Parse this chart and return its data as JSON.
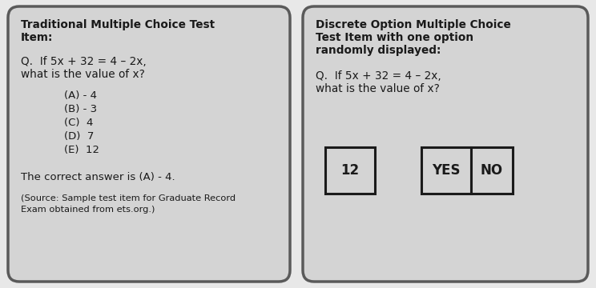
{
  "bg_color": "#e8e8e8",
  "panel_color": "#d4d4d4",
  "panel_border_color": "#5a5a5a",
  "text_color": "#1a1a1a",
  "left_title_line1": "Traditional Multiple Choice Test",
  "left_title_line2": "Item:",
  "left_question_line1": "Q.  If 5x + 32 = 4 – 2x,",
  "left_question_line2": "what is the value of x?",
  "left_choices": [
    "(A) - 4",
    "(B) - 3",
    "(C)  4",
    "(D)  7",
    "(E)  12"
  ],
  "left_answer": "The correct answer is (A) - 4.",
  "left_source_line1": "(Source: Sample test item for Graduate Record",
  "left_source_line2": "Exam obtained from ets.org.)",
  "right_title_line1": "Discrete Option Multiple Choice",
  "right_title_line2": "Test Item with one option",
  "right_title_line3": "randomly displayed:",
  "right_question_line1": "Q.  If 5x + 32 = 4 – 2x,",
  "right_question_line2": "what is the value of x?",
  "right_boxes": [
    "12",
    "YES",
    "NO"
  ],
  "box_facecolor": "#d4d4d4",
  "box_edgecolor": "#1a1a1a"
}
